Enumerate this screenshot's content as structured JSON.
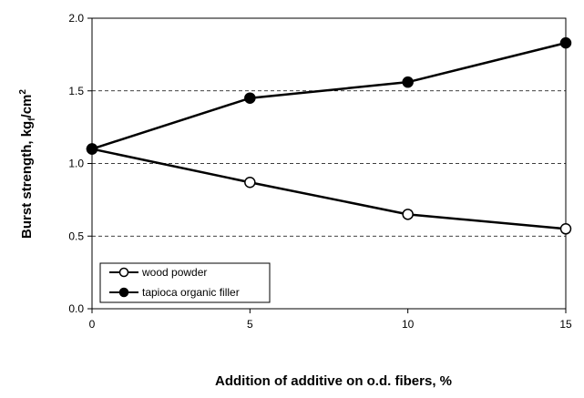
{
  "chart_data": {
    "type": "line",
    "x": [
      0,
      5,
      10,
      15
    ],
    "x_ticks": [
      "0",
      "5",
      "10",
      "15"
    ],
    "y_ticks": [
      "0.0",
      "0.5",
      "1.0",
      "1.5",
      "2.0"
    ],
    "xlim": [
      0,
      15
    ],
    "ylim": [
      0,
      2.0
    ],
    "xlabel": "Addition of additive on o.d. fibers, %",
    "ylabel": {
      "main": "Burst strength, kg",
      "sub": "f",
      "unit": "/cm",
      "sup": "2"
    },
    "grid": "horizontal dashed",
    "legend_position": "bottom-left",
    "series": [
      {
        "name": "wood powder",
        "marker": "open-circle",
        "values": [
          1.1,
          0.87,
          0.65,
          0.55
        ]
      },
      {
        "name": "tapioca organic filler",
        "marker": "filled-circle",
        "values": [
          1.1,
          1.45,
          1.56,
          1.83
        ]
      }
    ]
  }
}
